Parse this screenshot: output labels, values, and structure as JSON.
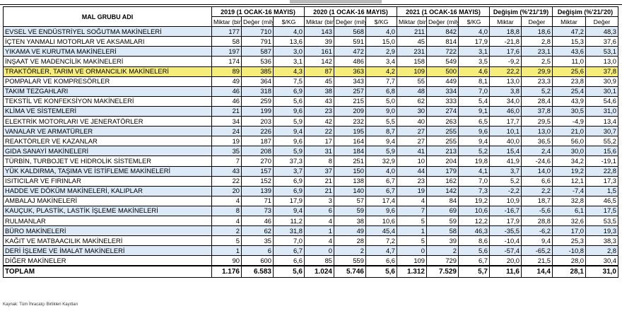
{
  "header": {
    "mal_grubu": "MAL GRUBU ADI",
    "groups": [
      "2019 (1 OCAK-16 MAYIS)",
      "2020 (1 OCAK-16 MAYIS)",
      "2021 (1 OCAK-16 MAYIS)",
      "Değişim (%'21/'19)",
      "Değişim (%'21/'20)"
    ],
    "sub": {
      "miktar": "Miktar (bin ton)",
      "deger": "Değer (milyon $)",
      "kg": "$/KG",
      "miktar_short": "Miktar",
      "deger_short": "Değer"
    }
  },
  "rows": [
    {
      "name": "EVSEL VE ENDÜSTRİYEL SOĞUTMA MAKİNELERİ",
      "v": [
        "177",
        "710",
        "4,0",
        "143",
        "568",
        "4,0",
        "211",
        "842",
        "4,0",
        "18,8",
        "18,6",
        "47,2",
        "48,3"
      ]
    },
    {
      "name": "İÇTEN YANMALI MOTORLAR VE AKSAMLARI",
      "v": [
        "58",
        "791",
        "13,6",
        "39",
        "591",
        "15,0",
        "45",
        "814",
        "17,9",
        "-21,8",
        "2,8",
        "15,3",
        "37,6"
      ]
    },
    {
      "name": "YIKAMA VE KURUTMA MAKİNELERİ",
      "v": [
        "197",
        "587",
        "3,0",
        "161",
        "472",
        "2,9",
        "231",
        "722",
        "3,1",
        "17,6",
        "23,1",
        "43,6",
        "53,1"
      ]
    },
    {
      "name": "İNŞAAT VE MADENCİLİK MAKİNELERİ",
      "v": [
        "174",
        "536",
        "3,1",
        "142",
        "486",
        "3,4",
        "158",
        "549",
        "3,5",
        "-9,2",
        "2,5",
        "11,0",
        "13,0"
      ]
    },
    {
      "name": "TRAKTÖRLER, TARIM VE ORMANCILIK MAKİNELERİ",
      "v": [
        "89",
        "385",
        "4,3",
        "87",
        "363",
        "4,2",
        "109",
        "500",
        "4,6",
        "22,2",
        "29,9",
        "25,6",
        "37,8"
      ]
    },
    {
      "name": "POMPALAR VE KOMPRESÖRLER",
      "v": [
        "49",
        "364",
        "7,5",
        "45",
        "343",
        "7,7",
        "55",
        "449",
        "8,1",
        "13,0",
        "23,3",
        "23,8",
        "30,9"
      ]
    },
    {
      "name": "TAKIM TEZGAHLARI",
      "v": [
        "46",
        "318",
        "6,9",
        "38",
        "257",
        "6,8",
        "48",
        "334",
        "7,0",
        "3,8",
        "5,2",
        "25,4",
        "30,1"
      ]
    },
    {
      "name": "TEKSTİL VE KONFEKSİYON MAKİNELERİ",
      "v": [
        "46",
        "259",
        "5,6",
        "43",
        "215",
        "5,0",
        "62",
        "333",
        "5,4",
        "34,0",
        "28,4",
        "43,9",
        "54,6"
      ]
    },
    {
      "name": "KLİMA VE SİSTEMLERİ",
      "v": [
        "21",
        "199",
        "9,6",
        "23",
        "209",
        "9,0",
        "30",
        "274",
        "9,1",
        "46,0",
        "37,8",
        "30,5",
        "31,0"
      ]
    },
    {
      "name": "ELEKTRİK MOTORLARI VE JENERATÖRLER",
      "v": [
        "34",
        "203",
        "5,9",
        "42",
        "232",
        "5,5",
        "40",
        "263",
        "6,5",
        "17,7",
        "29,5",
        "-4,9",
        "13,4"
      ]
    },
    {
      "name": "VANALAR VE ARMATÜRLER",
      "v": [
        "24",
        "226",
        "9,4",
        "22",
        "195",
        "8,7",
        "27",
        "255",
        "9,6",
        "10,1",
        "13,0",
        "21,0",
        "30,7"
      ]
    },
    {
      "name": "REAKTÖRLER VE KAZANLAR",
      "v": [
        "19",
        "187",
        "9,6",
        "17",
        "164",
        "9,4",
        "27",
        "255",
        "9,4",
        "40,0",
        "36,5",
        "56,0",
        "55,2"
      ]
    },
    {
      "name": "GIDA SANAYİ MAKİNELERİ",
      "v": [
        "35",
        "208",
        "5,9",
        "31",
        "184",
        "5,9",
        "41",
        "213",
        "5,2",
        "15,4",
        "2,4",
        "30,0",
        "15,6"
      ]
    },
    {
      "name": "TÜRBİN, TURBOJET VE HİDROLİK SİSTEMLER",
      "v": [
        "7",
        "270",
        "37,3",
        "8",
        "251",
        "32,9",
        "10",
        "204",
        "19,8",
        "41,9",
        "-24,6",
        "34,2",
        "-19,1"
      ]
    },
    {
      "name": "YÜK KALDIRMA, TAŞIMA VE İSTİFLEME MAKİNELERİ",
      "v": [
        "43",
        "157",
        "3,7",
        "37",
        "150",
        "4,0",
        "44",
        "179",
        "4,1",
        "3,7",
        "14,0",
        "19,2",
        "22,8"
      ]
    },
    {
      "name": "ISITICILAR VE FIRINLAR",
      "v": [
        "22",
        "152",
        "6,9",
        "21",
        "138",
        "6,7",
        "23",
        "162",
        "7,0",
        "5,2",
        "6,6",
        "12,1",
        "17,3"
      ]
    },
    {
      "name": "HADDE VE DÖKÜM MAKİNELERİ, KALIPLAR",
      "v": [
        "20",
        "139",
        "6,9",
        "21",
        "140",
        "6,7",
        "19",
        "142",
        "7,3",
        "-2,2",
        "2,2",
        "-7,4",
        "1,5"
      ]
    },
    {
      "name": "AMBALAJ MAKİNELERİ",
      "v": [
        "4",
        "71",
        "17,9",
        "3",
        "57",
        "17,4",
        "4",
        "84",
        "19,2",
        "10,9",
        "18,7",
        "32,8",
        "46,5"
      ]
    },
    {
      "name": "KAUÇUK, PLASTİK, LASTİK İŞLEME MAKİNELERİ",
      "v": [
        "8",
        "73",
        "9,4",
        "6",
        "59",
        "9,6",
        "7",
        "69",
        "10,6",
        "-16,7",
        "-5,6",
        "6,1",
        "17,5"
      ]
    },
    {
      "name": "RULMANLAR",
      "v": [
        "4",
        "46",
        "11,2",
        "4",
        "38",
        "10,6",
        "5",
        "59",
        "12,2",
        "17,9",
        "28,8",
        "32,6",
        "53,5"
      ]
    },
    {
      "name": "BÜRO MAKİNELERİ",
      "v": [
        "2",
        "62",
        "31,8",
        "1",
        "49",
        "45,4",
        "1",
        "58",
        "46,3",
        "-35,5",
        "-6,2",
        "17,0",
        "19,3"
      ]
    },
    {
      "name": "KAĞIT VE MATBAACILIK MAKİNELERİ",
      "v": [
        "5",
        "35",
        "7,0",
        "4",
        "28",
        "7,2",
        "5",
        "39",
        "8,6",
        "-10,4",
        "9,4",
        "25,3",
        "38,3"
      ]
    },
    {
      "name": "DERİ İŞLEME VE İMALAT MAKİNELERİ",
      "v": [
        "1",
        "6",
        "6,7",
        "0",
        "2",
        "4,7",
        "0",
        "2",
        "5,6",
        "-57,4",
        "-65,2",
        "-10,8",
        "2,8"
      ]
    },
    {
      "name": "DİĞER MAKİNELER",
      "v": [
        "90",
        "600",
        "6,6",
        "85",
        "559",
        "6,6",
        "109",
        "729",
        "6,7",
        "20,0",
        "21,5",
        "28,0",
        "30,4"
      ]
    }
  ],
  "total": {
    "name": "TOPLAM",
    "v": [
      "1.176",
      "6.583",
      "5,6",
      "1.024",
      "5.746",
      "5,6",
      "1.312",
      "7.529",
      "5,7",
      "11,6",
      "14,4",
      "28,1",
      "31,0"
    ]
  },
  "source": "Kaynak: Tüm İhracatçı Birlikleri Kayıtları",
  "highlight_row": 4,
  "colors": {
    "row_alt": "#dce9f7",
    "highlight": "#f6ec7a"
  }
}
